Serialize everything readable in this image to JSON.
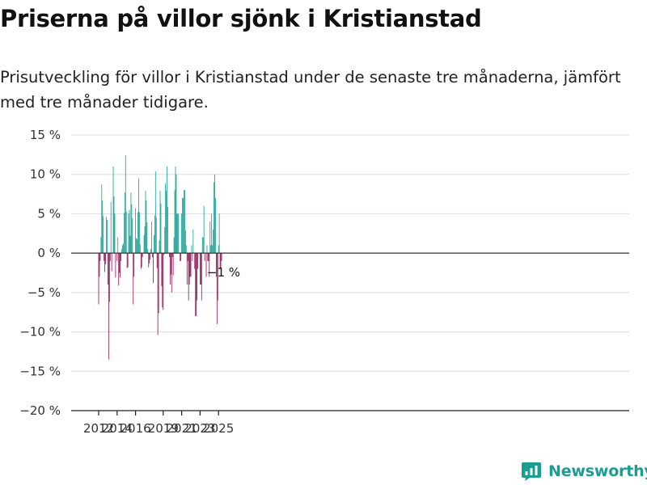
{
  "header": {
    "title": "Priserna på villor sjönk i Kristianstad",
    "subtitle": "Prisutveckling för villor i Kristianstad under de senaste tre månaderna, jämfört med tre månader tidigare."
  },
  "brand": {
    "name": "Newsworthy",
    "icon": "newsworthy-logo-icon",
    "color": "#1a9e8f"
  },
  "chart_data": {
    "type": "bar",
    "title": "Priserna på villor sjönk i Kristianstad",
    "subtitle": "Prisutveckling för villor i Kristianstad under de senaste tre månaderna, jämfört med tre månader tidigare.",
    "x_start": "2012-01",
    "x_end": "2025-07",
    "x_ticks": [
      {
        "label": "2012",
        "month": "2012-01"
      },
      {
        "label": "2014",
        "month": "2014-01"
      },
      {
        "label": "2016",
        "month": "2016-01"
      },
      {
        "label": "2019",
        "month": "2019-01"
      },
      {
        "label": "2021",
        "month": "2021-01"
      },
      {
        "label": "2023",
        "month": "2023-01"
      },
      {
        "label": "2025",
        "month": "2025-01"
      }
    ],
    "y_ticks": [
      {
        "value": 15,
        "label": "15 %"
      },
      {
        "value": 10,
        "label": "10 %"
      },
      {
        "value": 5,
        "label": "5 %"
      },
      {
        "value": 0,
        "label": "0 %"
      },
      {
        "value": -5,
        "label": "−5 %"
      },
      {
        "value": -10,
        "label": "−10 %"
      },
      {
        "value": -15,
        "label": "−15 %"
      },
      {
        "value": -20,
        "label": "−20 %"
      }
    ],
    "ylim": [
      -20,
      15
    ],
    "grid": true,
    "colors": {
      "positive": "#0f9b8e",
      "negative": "#8c0a4d",
      "grid": "#dcdcdc",
      "zero_line": "#333333"
    },
    "annotation": {
      "text": "−1 %",
      "month": "2025-07",
      "value": -1
    },
    "values": [
      -6.5,
      -3,
      -1,
      2,
      8.7,
      6.7,
      4.7,
      -1,
      -2.4,
      -1.4,
      4.6,
      4.2,
      -4,
      -13.5,
      -6.2,
      -1,
      6.5,
      -2.3,
      0,
      11,
      7.2,
      5,
      -3.1,
      0,
      -1,
      2,
      -4.1,
      -2.5,
      -3.1,
      -1,
      0.5,
      1,
      1.2,
      5.1,
      7.7,
      12.4,
      5.3,
      -1.9,
      -1.8,
      5,
      5.5,
      2.2,
      7.7,
      6.2,
      4.4,
      -6.5,
      -3,
      0,
      5.7,
      1.9,
      1.8,
      5.2,
      9.5,
      5.2,
      1.1,
      -2,
      -1.8,
      -0.5,
      0,
      2.3,
      3.4,
      7.9,
      6.7,
      3.9,
      0.5,
      -1.8,
      -1.3,
      -0.8,
      0.5,
      4,
      -0.5,
      -3.8,
      2.3,
      4.8,
      10.4,
      4.5,
      -1.9,
      -10.4,
      -7.6,
      1.6,
      7.9,
      6.3,
      -4.2,
      -6.9,
      -7.2,
      -0.2,
      3.3,
      8.9,
      7.9,
      11,
      5.9,
      0,
      -0.5,
      -4,
      -2.7,
      -5,
      -0.5,
      -2.8,
      2,
      8,
      11,
      10,
      5,
      5,
      5,
      0,
      -1,
      -1,
      5,
      7,
      7,
      8,
      8,
      2.9,
      1,
      -4,
      -1,
      -6,
      -4,
      -3,
      -3,
      1,
      -1,
      3,
      0,
      -2,
      -8,
      -8,
      -6,
      -2,
      0,
      0,
      -4,
      -4,
      -6,
      2,
      2,
      6,
      -1,
      0,
      -3,
      1,
      -1,
      -1,
      -3,
      4,
      1,
      5,
      1,
      3,
      9,
      10,
      7,
      -3,
      -9,
      -6,
      1,
      5,
      -2,
      -2,
      -1
    ]
  }
}
